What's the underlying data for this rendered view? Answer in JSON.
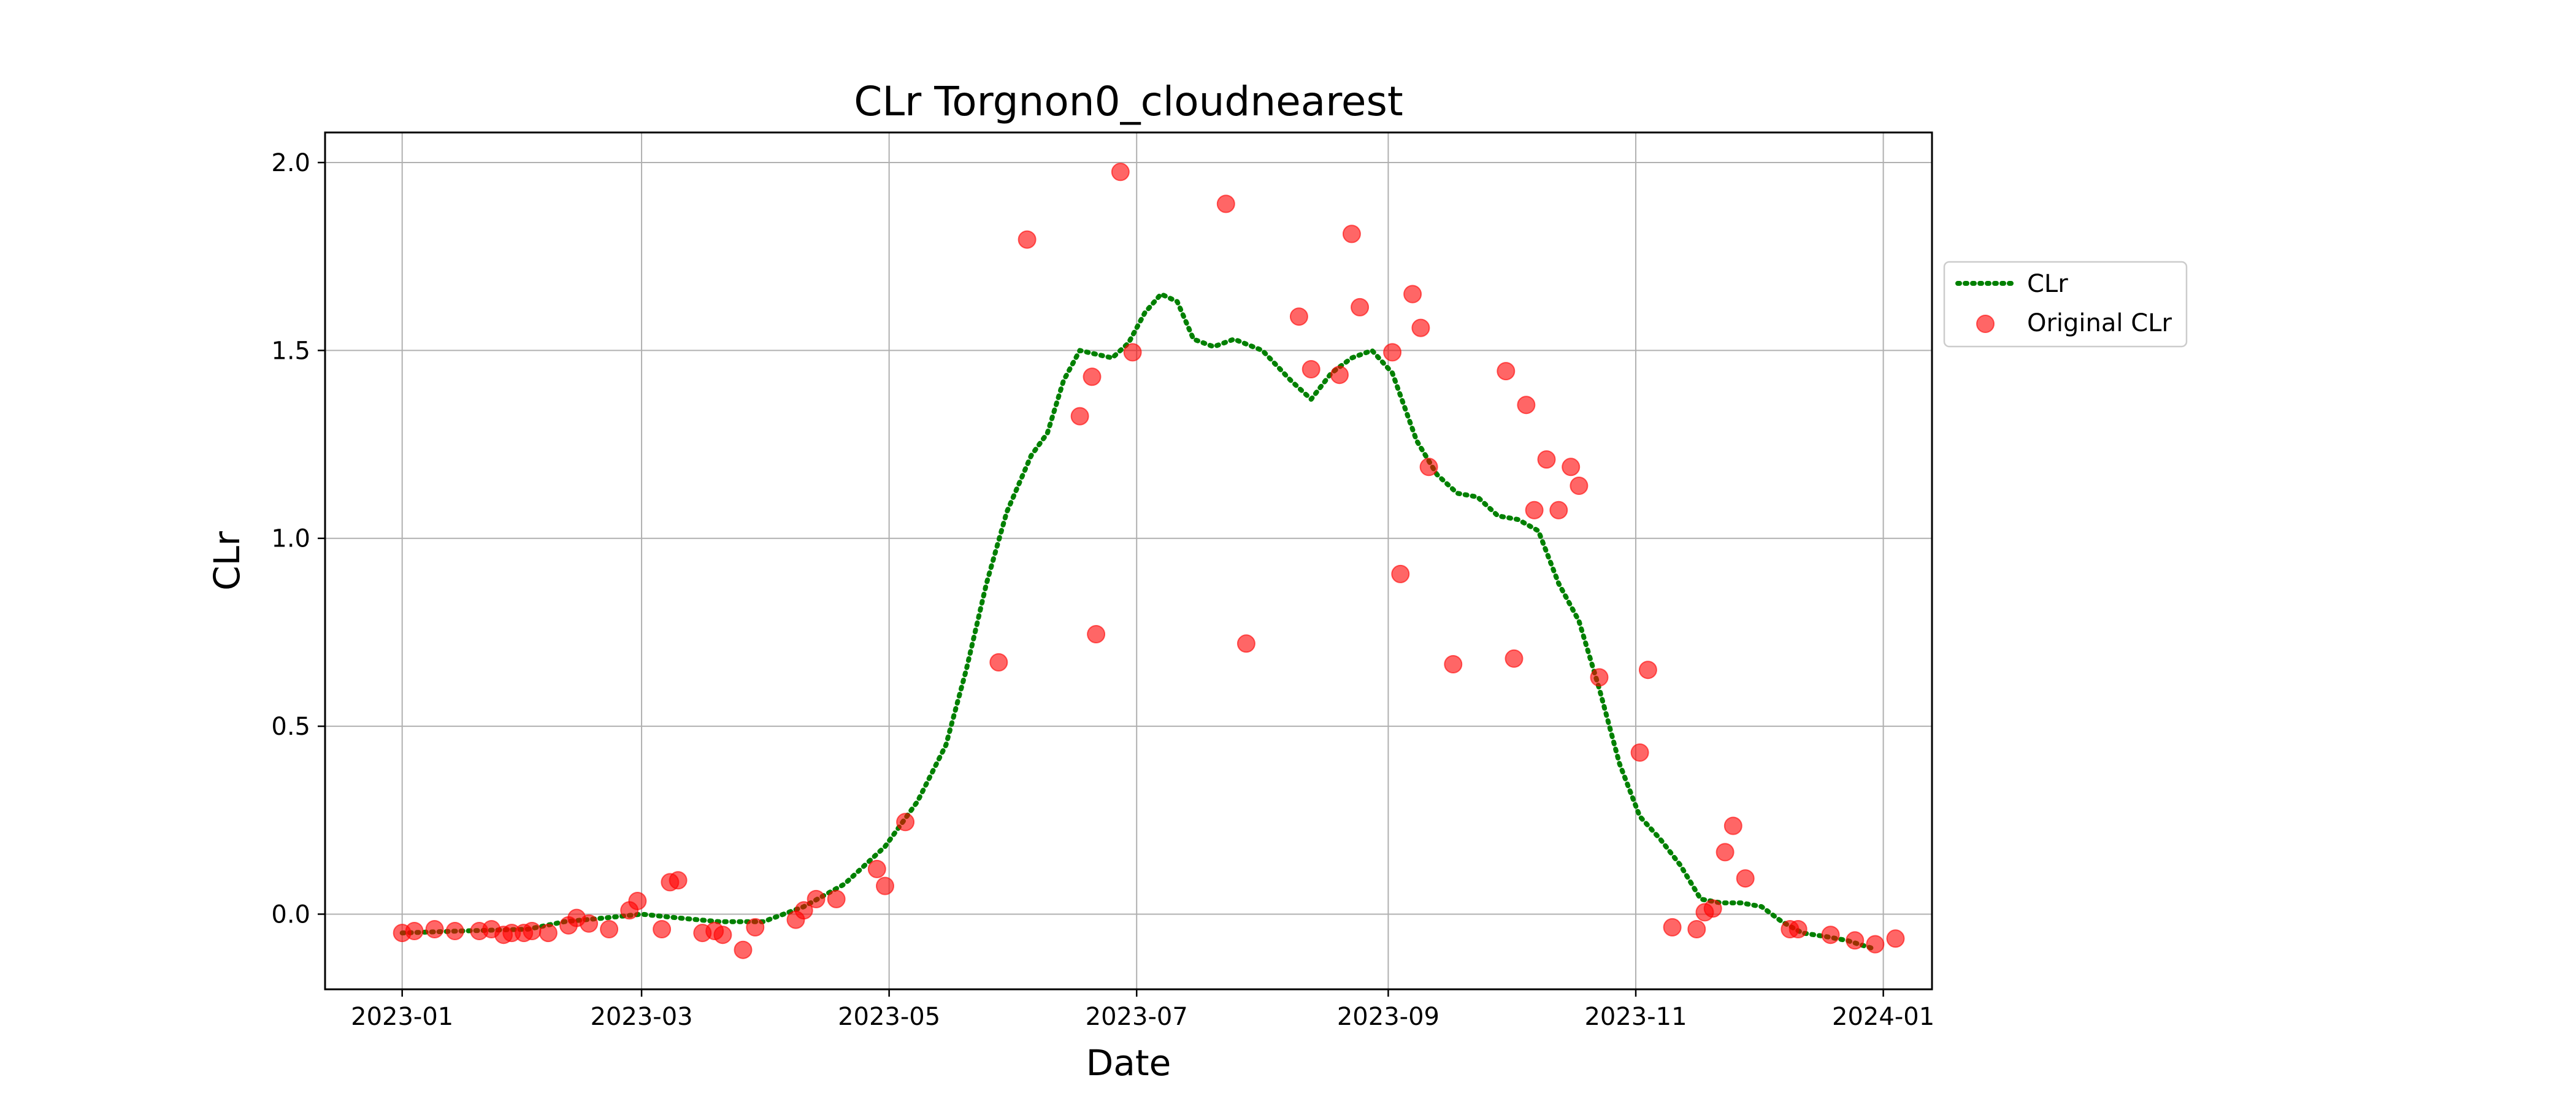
{
  "chart_data": {
    "type": "scatter",
    "title": "CLr Torgnon0_cloudnearest",
    "xlabel": "Date",
    "ylabel": "CLr",
    "x_ticks": [
      "2023-01",
      "2023-03",
      "2023-05",
      "2023-07",
      "2023-09",
      "2023-11",
      "2024-01"
    ],
    "y_ticks": [
      "0.0",
      "0.5",
      "1.0",
      "1.5",
      "2.0"
    ],
    "xlim": [
      "2022-12-13",
      "2024-01-13"
    ],
    "ylim": [
      -0.2,
      2.08
    ],
    "grid": true,
    "legend_position": "right, outside plot area",
    "series": [
      {
        "name": "CLr",
        "style": "dotted line",
        "color": "#008000",
        "points": [
          [
            "2023-01-01",
            -0.05
          ],
          [
            "2023-01-15",
            -0.045
          ],
          [
            "2023-02-01",
            -0.04
          ],
          [
            "2023-02-10",
            -0.02
          ],
          [
            "2023-02-20",
            -0.01
          ],
          [
            "2023-03-01",
            0.0
          ],
          [
            "2023-03-10",
            -0.01
          ],
          [
            "2023-03-20",
            -0.02
          ],
          [
            "2023-03-31",
            -0.02
          ],
          [
            "2023-04-10",
            0.02
          ],
          [
            "2023-04-20",
            0.08
          ],
          [
            "2023-04-30",
            0.18
          ],
          [
            "2023-05-08",
            0.3
          ],
          [
            "2023-05-15",
            0.45
          ],
          [
            "2023-05-20",
            0.65
          ],
          [
            "2023-05-25",
            0.88
          ],
          [
            "2023-05-30",
            1.07
          ],
          [
            "2023-06-05",
            1.22
          ],
          [
            "2023-06-09",
            1.28
          ],
          [
            "2023-06-13",
            1.42
          ],
          [
            "2023-06-17",
            1.5
          ],
          [
            "2023-06-21",
            1.49
          ],
          [
            "2023-06-25",
            1.48
          ],
          [
            "2023-06-29",
            1.52
          ],
          [
            "2023-07-03",
            1.6
          ],
          [
            "2023-07-07",
            1.65
          ],
          [
            "2023-07-11",
            1.63
          ],
          [
            "2023-07-15",
            1.53
          ],
          [
            "2023-07-20",
            1.51
          ],
          [
            "2023-07-25",
            1.53
          ],
          [
            "2023-08-01",
            1.5
          ],
          [
            "2023-08-08",
            1.42
          ],
          [
            "2023-08-13",
            1.37
          ],
          [
            "2023-08-18",
            1.44
          ],
          [
            "2023-08-23",
            1.48
          ],
          [
            "2023-08-28",
            1.5
          ],
          [
            "2023-09-02",
            1.44
          ],
          [
            "2023-09-08",
            1.26
          ],
          [
            "2023-09-13",
            1.17
          ],
          [
            "2023-09-18",
            1.12
          ],
          [
            "2023-09-23",
            1.11
          ],
          [
            "2023-09-28",
            1.06
          ],
          [
            "2023-10-03",
            1.05
          ],
          [
            "2023-10-08",
            1.02
          ],
          [
            "2023-10-13",
            0.88
          ],
          [
            "2023-10-18",
            0.78
          ],
          [
            "2023-10-23",
            0.6
          ],
          [
            "2023-10-28",
            0.4
          ],
          [
            "2023-11-02",
            0.26
          ],
          [
            "2023-11-07",
            0.2
          ],
          [
            "2023-11-12",
            0.13
          ],
          [
            "2023-11-17",
            0.04
          ],
          [
            "2023-11-22",
            0.03
          ],
          [
            "2023-11-27",
            0.03
          ],
          [
            "2023-12-02",
            0.02
          ],
          [
            "2023-12-07",
            -0.02
          ],
          [
            "2023-12-12",
            -0.05
          ],
          [
            "2023-12-18",
            -0.06
          ],
          [
            "2023-12-23",
            -0.07
          ],
          [
            "2023-12-29",
            -0.09
          ]
        ]
      },
      {
        "name": "Original CLr",
        "style": "markers",
        "color": "#ff0000",
        "points": [
          [
            "2023-01-01",
            -0.05
          ],
          [
            "2023-01-04",
            -0.045
          ],
          [
            "2023-01-09",
            -0.04
          ],
          [
            "2023-01-14",
            -0.045
          ],
          [
            "2023-01-20",
            -0.045
          ],
          [
            "2023-01-23",
            -0.04
          ],
          [
            "2023-01-26",
            -0.055
          ],
          [
            "2023-01-28",
            -0.05
          ],
          [
            "2023-01-31",
            -0.05
          ],
          [
            "2023-02-02",
            -0.045
          ],
          [
            "2023-02-06",
            -0.05
          ],
          [
            "2023-02-11",
            -0.03
          ],
          [
            "2023-02-13",
            -0.01
          ],
          [
            "2023-02-16",
            -0.025
          ],
          [
            "2023-02-21",
            -0.04
          ],
          [
            "2023-02-26",
            0.01
          ],
          [
            "2023-02-28",
            0.035
          ],
          [
            "2023-03-06",
            -0.04
          ],
          [
            "2023-03-08",
            0.085
          ],
          [
            "2023-03-10",
            0.09
          ],
          [
            "2023-03-16",
            -0.05
          ],
          [
            "2023-03-19",
            -0.045
          ],
          [
            "2023-03-21",
            -0.055
          ],
          [
            "2023-03-26",
            -0.095
          ],
          [
            "2023-03-29",
            -0.035
          ],
          [
            "2023-04-08",
            -0.015
          ],
          [
            "2023-04-10",
            0.01
          ],
          [
            "2023-04-13",
            0.04
          ],
          [
            "2023-04-18",
            0.04
          ],
          [
            "2023-04-28",
            0.12
          ],
          [
            "2023-04-30",
            0.075
          ],
          [
            "2023-05-05",
            0.245
          ],
          [
            "2023-05-28",
            0.67
          ],
          [
            "2023-06-04",
            1.795
          ],
          [
            "2023-06-17",
            1.325
          ],
          [
            "2023-06-20",
            1.43
          ],
          [
            "2023-06-21",
            0.745
          ],
          [
            "2023-06-27",
            1.975
          ],
          [
            "2023-06-30",
            1.495
          ],
          [
            "2023-07-23",
            1.89
          ],
          [
            "2023-07-28",
            0.72
          ],
          [
            "2023-08-10",
            1.59
          ],
          [
            "2023-08-13",
            1.45
          ],
          [
            "2023-08-20",
            1.435
          ],
          [
            "2023-08-23",
            1.81
          ],
          [
            "2023-08-25",
            1.615
          ],
          [
            "2023-09-02",
            1.495
          ],
          [
            "2023-09-04",
            0.905
          ],
          [
            "2023-09-07",
            1.65
          ],
          [
            "2023-09-09",
            1.56
          ],
          [
            "2023-09-11",
            1.19
          ],
          [
            "2023-09-17",
            0.665
          ],
          [
            "2023-09-30",
            1.445
          ],
          [
            "2023-10-02",
            0.68
          ],
          [
            "2023-10-05",
            1.355
          ],
          [
            "2023-10-07",
            1.075
          ],
          [
            "2023-10-10",
            1.21
          ],
          [
            "2023-10-13",
            1.075
          ],
          [
            "2023-10-16",
            1.19
          ],
          [
            "2023-10-18",
            1.14
          ],
          [
            "2023-10-23",
            0.63
          ],
          [
            "2023-11-02",
            0.43
          ],
          [
            "2023-11-04",
            0.65
          ],
          [
            "2023-11-10",
            -0.035
          ],
          [
            "2023-11-16",
            -0.04
          ],
          [
            "2023-11-18",
            0.005
          ],
          [
            "2023-11-20",
            0.015
          ],
          [
            "2023-11-23",
            0.165
          ],
          [
            "2023-11-25",
            0.235
          ],
          [
            "2023-11-28",
            0.095
          ],
          [
            "2023-12-09",
            -0.04
          ],
          [
            "2023-12-11",
            -0.04
          ],
          [
            "2023-12-19",
            -0.055
          ],
          [
            "2023-12-25",
            -0.07
          ],
          [
            "2023-12-30",
            -0.08
          ],
          [
            "2024-01-04",
            -0.065
          ]
        ]
      }
    ]
  }
}
